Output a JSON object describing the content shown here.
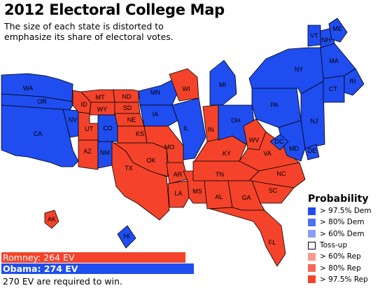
{
  "title": "2012 Electoral College Map",
  "subtitle": "The size of each state is distorted to emphasize its share of electoral votes.",
  "colors": {
    "dem_strong": "#1f4df0",
    "dem_likely": "#4f6ff5",
    "dem_lean": "#8c9cf7",
    "tossup": "#ffffff",
    "rep_lean": "#f79a8a",
    "rep_likely": "#f56a55",
    "rep_strong": "#f4432a"
  },
  "states": {
    "WA": "dem",
    "OR": "dem",
    "CA": "dem",
    "NV": "dem",
    "ID": "rep",
    "MT": "rep",
    "WY": "rep",
    "UT": "rep",
    "CO": "dem",
    "AZ": "rep",
    "NM": "dem",
    "ND": "rep",
    "SD": "rep",
    "NE": "rep",
    "KS": "rep",
    "OK": "rep",
    "TX": "rep",
    "MN": "dem",
    "IA": "dem",
    "MO": "rep",
    "AR": "rep",
    "LA": "rep",
    "WI": "rep",
    "IL": "dem",
    "MS": "rep",
    "MI": "dem",
    "IN": "rep",
    "KY": "rep",
    "TN": "rep",
    "AL": "rep",
    "OH": "dem",
    "WV": "rep",
    "VA": "rep",
    "NC": "rep",
    "SC": "rep",
    "GA": "rep",
    "FL": "rep",
    "PA": "dem",
    "NY": "dem",
    "NJ": "dem",
    "DE": "dem",
    "MD": "dem",
    "DC": "dem",
    "CT": "dem",
    "RI": "dem",
    "MA": "dem",
    "VT": "dem",
    "NH": "dem",
    "ME": "dem",
    "AK": "rep",
    "HI": "dem"
  },
  "totals": {
    "romney": "Romney: 264 EV",
    "obama": "Obama: 274 EV",
    "romney_ev": 264,
    "obama_ev": 274
  },
  "note": "270 EV are required to win.",
  "legend": {
    "title": "Probability",
    "items": [
      {
        "label": "> 97.5% Dem",
        "color": "#1f4df0"
      },
      {
        "label": "> 80% Dem",
        "color": "#4f6ff5"
      },
      {
        "label": "> 60% Dem",
        "color": "#8c9cf7"
      },
      {
        "label": "Toss-up",
        "color": "#ffffff"
      },
      {
        "label": "> 60% Rep",
        "color": "#f79a8a"
      },
      {
        "label": "> 80% Rep",
        "color": "#f56a55"
      },
      {
        "label": "> 97.5% Rep",
        "color": "#f4432a"
      }
    ]
  }
}
